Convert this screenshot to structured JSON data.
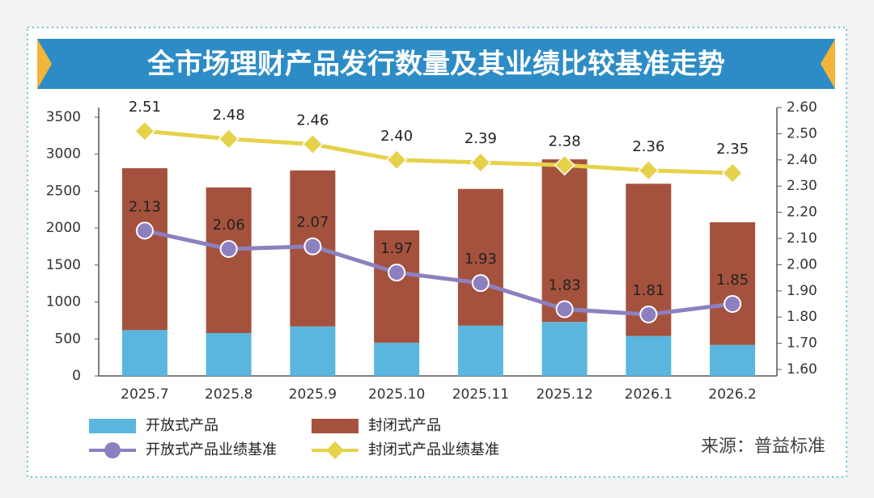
{
  "chart_data": {
    "type": "bar",
    "stacked": true,
    "title": "全市场理财产品发行数量及其业绩比较基准走势",
    "source": "来源：普益标准",
    "categories": [
      "2025.7",
      "2025.8",
      "2025.9",
      "2025.10",
      "2025.11",
      "2025.12",
      "2026.1",
      "2026.2"
    ],
    "series": [
      {
        "name": "开放式产品",
        "type": "bar",
        "color": "#5ab6de",
        "values": [
          620,
          580,
          670,
          450,
          680,
          730,
          540,
          420
        ]
      },
      {
        "name": "封闭式产品",
        "type": "bar",
        "color": "#a4523d",
        "values": [
          2190,
          1970,
          2110,
          1520,
          1850,
          2200,
          2060,
          1660
        ]
      },
      {
        "name": "开放式产品业绩基准",
        "type": "line",
        "axis": "y2",
        "marker": "circle",
        "color": "#8d80bf",
        "values": [
          2.13,
          2.06,
          2.07,
          1.97,
          1.93,
          1.83,
          1.81,
          1.85
        ],
        "value_labels": [
          "2.13",
          "2.06",
          "2.07",
          "1.97",
          "1.93",
          "1.83",
          "1.81",
          "1.85"
        ]
      },
      {
        "name": "封闭式产品业绩基准",
        "type": "line",
        "axis": "y2",
        "marker": "diamond",
        "color": "#e6d24a",
        "values": [
          2.51,
          2.48,
          2.46,
          2.4,
          2.39,
          2.38,
          2.36,
          2.35
        ],
        "value_labels": [
          "2.51",
          "2.48",
          "2.46",
          "2.40",
          "2.39",
          "2.38",
          "2.36",
          "2.35"
        ]
      }
    ],
    "ylim": [
      0,
      3500
    ],
    "yticks": [
      0,
      500,
      1000,
      1500,
      2000,
      2500,
      3000,
      3500
    ],
    "y2lim": [
      1.6,
      2.6
    ],
    "y2ticks": [
      {
        "value": 1.6,
        "label": "1.60"
      },
      {
        "value": 1.7,
        "label": "1.70"
      },
      {
        "value": 1.8,
        "label": "1.80"
      },
      {
        "value": 1.9,
        "label": "1.90"
      },
      {
        "value": 2.0,
        "label": "2.00"
      },
      {
        "value": 2.1,
        "label": "2.10"
      },
      {
        "value": 2.2,
        "label": "2.20"
      },
      {
        "value": 2.3,
        "label": "2.30"
      },
      {
        "value": 2.4,
        "label": "2.40"
      },
      {
        "value": 2.5,
        "label": "2.50"
      },
      {
        "value": 2.6,
        "label": "2.60"
      }
    ],
    "grid": false
  }
}
